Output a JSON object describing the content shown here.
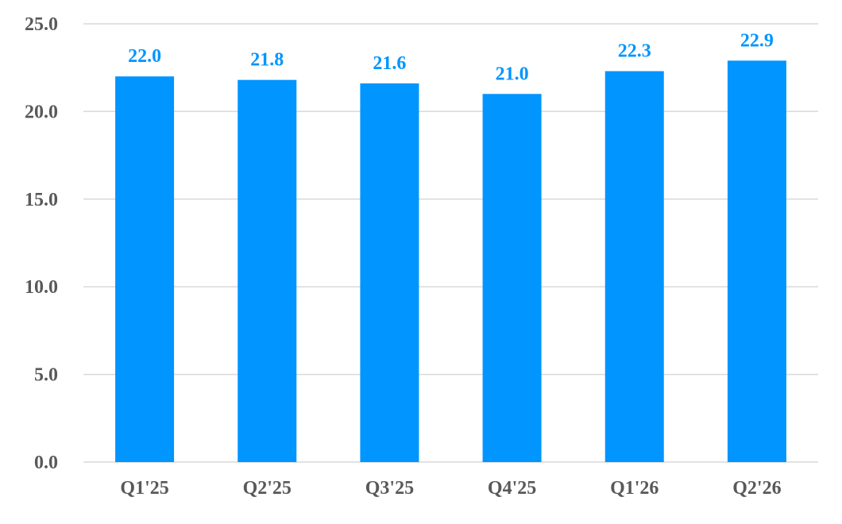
{
  "chart_data": {
    "type": "bar",
    "categories": [
      "Q1'25",
      "Q2'25",
      "Q3'25",
      "Q4'25",
      "Q1'26",
      "Q2'26"
    ],
    "values": [
      22.0,
      21.8,
      21.6,
      21.0,
      22.3,
      22.9
    ],
    "data_labels": [
      "22.0",
      "21.8",
      "21.6",
      "21.0",
      "22.3",
      "22.9"
    ],
    "y_ticks": [
      0,
      5,
      10,
      15,
      20,
      25
    ],
    "y_tick_labels": [
      "0.0",
      "5.0",
      "10.0",
      "15.0",
      "20.0",
      "25.0"
    ],
    "ylim": [
      0,
      25
    ],
    "title": "",
    "xlabel": "",
    "ylabel": "",
    "grid": true,
    "legend": "none",
    "colors": {
      "bar": "#0095FF",
      "data_label": "#0095FF",
      "grid": "#D9D9D9",
      "tick_text": "#595959"
    }
  }
}
